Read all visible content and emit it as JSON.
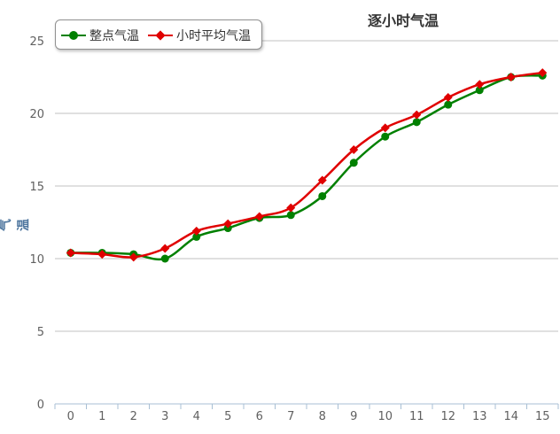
{
  "chart_data": {
    "type": "line",
    "title": "逐小时气温",
    "xlabel": "",
    "ylabel": "气温",
    "categories": [
      "0",
      "1",
      "2",
      "3",
      "4",
      "5",
      "6",
      "7",
      "8",
      "9",
      "10",
      "11",
      "12",
      "13",
      "14",
      "15"
    ],
    "ylim": [
      0,
      25
    ],
    "yticks": [
      0,
      5,
      10,
      15,
      20,
      25
    ],
    "grid": true,
    "legend": "top-left",
    "series": [
      {
        "name": "整点气温",
        "color": "#008000",
        "marker": "circle",
        "values": [
          10.4,
          10.4,
          10.3,
          10.0,
          11.5,
          12.1,
          12.8,
          13.0,
          14.3,
          16.6,
          18.4,
          19.4,
          20.6,
          21.6,
          22.5,
          22.6
        ]
      },
      {
        "name": "小时平均气温",
        "color": "#e00000",
        "marker": "diamond",
        "values": [
          10.4,
          10.3,
          10.1,
          10.7,
          11.9,
          12.4,
          12.9,
          13.5,
          15.4,
          17.5,
          19.0,
          19.9,
          21.1,
          22.0,
          22.5,
          22.8
        ]
      }
    ]
  }
}
